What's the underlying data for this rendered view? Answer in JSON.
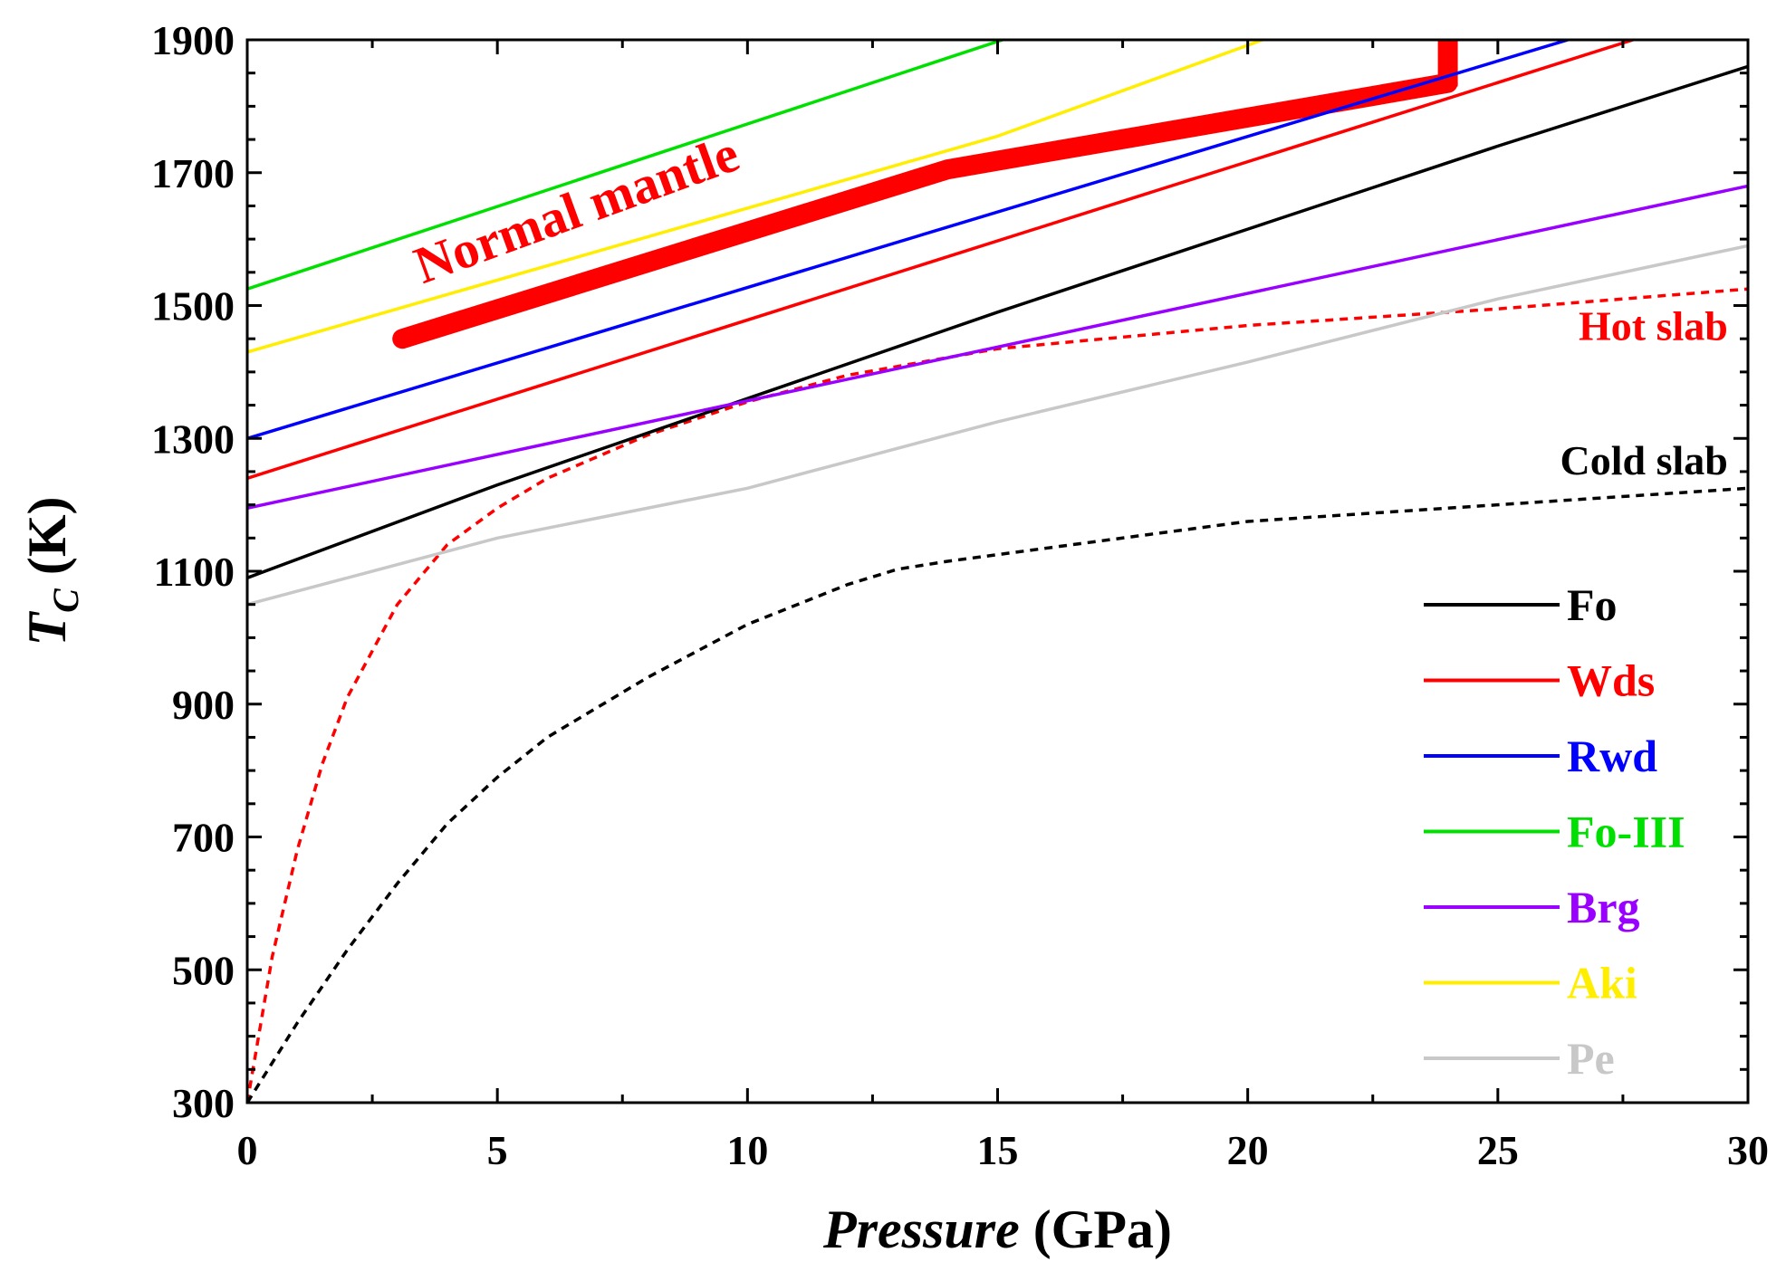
{
  "chart_data": {
    "type": "line",
    "xlabel_italic": "Pressure",
    "xlabel_unit": " (GPa)",
    "ylabel_main": "T",
    "ylabel_sub": "C",
    "ylabel_unit": " (K)",
    "xlim": [
      0,
      30
    ],
    "ylim": [
      300,
      1900
    ],
    "xticks": [
      0,
      5,
      10,
      15,
      20,
      25,
      30
    ],
    "yticks": [
      300,
      500,
      700,
      900,
      1100,
      1300,
      1500,
      1700,
      1900
    ],
    "series": [
      {
        "name": "Fo",
        "color": "#000000",
        "x": [
          0,
          5,
          10,
          15,
          20,
          25,
          30
        ],
        "y": [
          1090,
          1230,
          1360,
          1490,
          1615,
          1740,
          1860
        ]
      },
      {
        "name": "Wds",
        "color": "#ff0000",
        "x": [
          0,
          27.7
        ],
        "y": [
          1240,
          1900
        ]
      },
      {
        "name": "Rwd",
        "color": "#0000ff",
        "x": [
          0,
          26.4
        ],
        "y": [
          1300,
          1900
        ]
      },
      {
        "name": "Fo-III",
        "color": "#00e000",
        "x": [
          0,
          15.1
        ],
        "y": [
          1525,
          1900
        ]
      },
      {
        "name": "Brg",
        "color": "#9900ff",
        "x": [
          0,
          30
        ],
        "y": [
          1195,
          1680
        ]
      },
      {
        "name": "Aki",
        "color": "#ffee00",
        "x": [
          0,
          15,
          20.3
        ],
        "y": [
          1430,
          1755,
          1900
        ]
      },
      {
        "name": "Pe",
        "color": "#c8c8c8",
        "x": [
          0,
          5,
          10,
          15,
          20,
          25,
          30
        ],
        "y": [
          1050,
          1150,
          1225,
          1325,
          1415,
          1510,
          1590
        ]
      }
    ],
    "geotherms": [
      {
        "name": "Hot slab",
        "color": "#ff0000",
        "dashed": true,
        "x": [
          0,
          0.5,
          1,
          1.5,
          2,
          3,
          4,
          5,
          6,
          8,
          10,
          12,
          15,
          20,
          25,
          30
        ],
        "y": [
          300,
          520,
          680,
          810,
          910,
          1050,
          1140,
          1195,
          1240,
          1305,
          1355,
          1395,
          1435,
          1470,
          1495,
          1525
        ]
      },
      {
        "name": "Cold slab",
        "color": "#000000",
        "dashed": true,
        "x": [
          0,
          1,
          2,
          3,
          4,
          5,
          6,
          8,
          10,
          12,
          13,
          14,
          16,
          18,
          20,
          22,
          25,
          30
        ],
        "y": [
          300,
          420,
          530,
          630,
          720,
          790,
          850,
          940,
          1020,
          1080,
          1103,
          1115,
          1135,
          1155,
          1175,
          1185,
          1200,
          1225
        ]
      },
      {
        "name": "Normal mantle",
        "color": "#ff0000",
        "dashed": false,
        "x": [
          3.1,
          14,
          24
        ],
        "y": [
          1450,
          1705,
          1835
        ]
      }
    ],
    "normal_mantle_step": {
      "x": 24,
      "y": [
        1830,
        1900
      ]
    },
    "annotations": [
      {
        "text": "Normal mantle",
        "color": "#ff0000"
      },
      {
        "text": "Hot slab",
        "color": "#ff0000"
      },
      {
        "text": "Cold slab",
        "color": "#000000"
      }
    ]
  }
}
